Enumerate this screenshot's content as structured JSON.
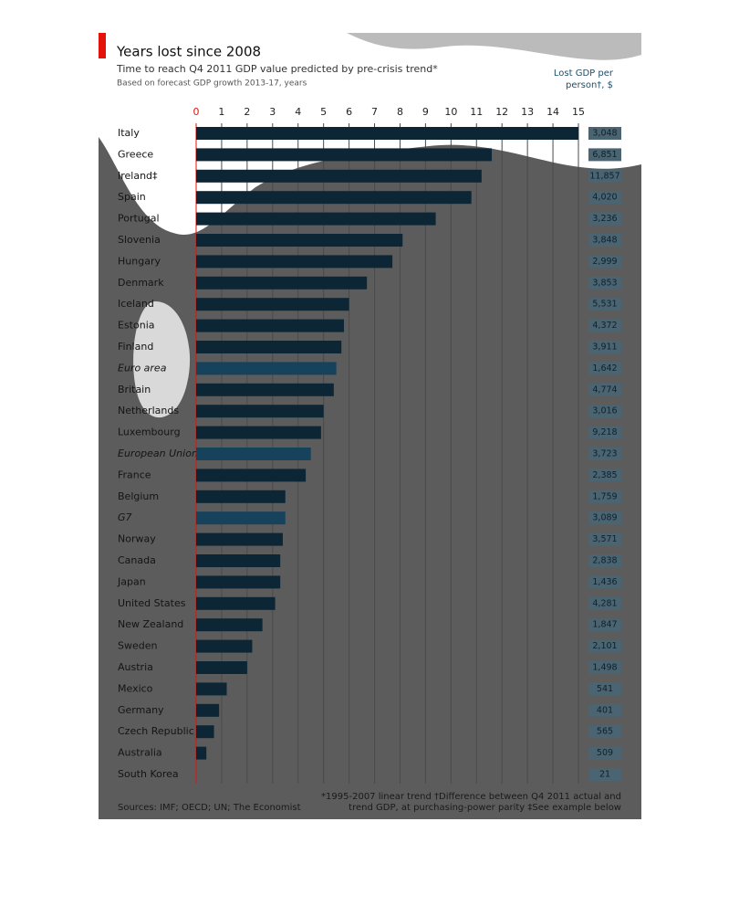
{
  "chart_data": {
    "type": "bar",
    "orientation": "horizontal",
    "title": "Years lost since 2008",
    "subtitle": "Time to reach Q4 2011 GDP value predicted by pre-crisis trend*",
    "note": "Based on forecast GDP growth 2013-17, years",
    "categories": [
      "Italy",
      "Greece",
      "Ireland‡",
      "Spain",
      "Portugal",
      "Slovenia",
      "Hungary",
      "Denmark",
      "Iceland",
      "Estonia",
      "Finland",
      "Euro area",
      "Britain",
      "Netherlands",
      "Luxembourg",
      "European Union",
      "France",
      "Belgium",
      "G7",
      "Norway",
      "Canada",
      "Japan",
      "United States",
      "New Zealand",
      "Sweden",
      "Austria",
      "Mexico",
      "Germany",
      "Czech Republic",
      "Australia",
      "South Korea"
    ],
    "values": [
      15.0,
      11.6,
      11.2,
      10.8,
      9.4,
      8.1,
      7.7,
      6.7,
      6.0,
      5.8,
      5.7,
      5.5,
      5.4,
      5.0,
      4.9,
      4.5,
      4.3,
      3.5,
      3.5,
      3.4,
      3.3,
      3.3,
      3.1,
      2.6,
      2.2,
      2.0,
      1.2,
      0.9,
      0.7,
      0.4,
      0
    ],
    "color": "#0d2635",
    "colors": [
      "#0d2635",
      "#0d2635",
      "#0d2635",
      "#0d2635",
      "#0d2635",
      "#0d2635",
      "#0d2635",
      "#0d2635",
      "#0d2635",
      "#0d2635",
      "#0d2635",
      "#17425c",
      "#0d2635",
      "#0d2635",
      "#0d2635",
      "#17425c",
      "#0d2635",
      "#0d2635",
      "#17425c",
      "#0d2635",
      "#0d2635",
      "#0d2635",
      "#0d2635",
      "#0d2635",
      "#0d2635",
      "#0d2635",
      "#0d2635",
      "#0d2635",
      "#0d2635",
      "#0d2635",
      "#0d2635"
    ],
    "xlim": [
      0,
      15
    ],
    "xticks": [
      0,
      1,
      2,
      3,
      4,
      5,
      6,
      7,
      8,
      9,
      10,
      11,
      12,
      13,
      14,
      15
    ],
    "grid": true,
    "lost_gdp_title": [
      "Lost GDP per",
      "person†, $"
    ],
    "lost_gdp": {
      "values": [
        3048,
        6851,
        11857,
        4020,
        3236,
        3848,
        2999,
        3853,
        5531,
        4372,
        3911,
        1642,
        4774,
        3016,
        9218,
        3723,
        2385,
        1759,
        3089,
        3571,
        2838,
        1436,
        4281,
        1847,
        2101,
        1498,
        541,
        401,
        565,
        509,
        21
      ],
      "value_labels": [
        "3,048",
        "6,851",
        "11,857",
        "4,020",
        "3,236",
        "3,848",
        "2,999",
        "3,853",
        "5,531",
        "4,372",
        "3,911",
        "1,642",
        "4,774",
        "3,016",
        "9,218",
        "3,723",
        "2,385",
        "1,759",
        "3,089",
        "3,571",
        "2,838",
        "1,436",
        "4,281",
        "1,847",
        "2,101",
        "1,498",
        "541",
        "401",
        "565",
        "509",
        "21"
      ]
    },
    "footnotes": [
      "*1995-2007 linear trend   †Difference between Q4 2011 actual and",
      "trend GDP, at purchasing-power parity   ‡See example below"
    ],
    "source": "Sources: IMF; OECD; UN; The Economist"
  }
}
